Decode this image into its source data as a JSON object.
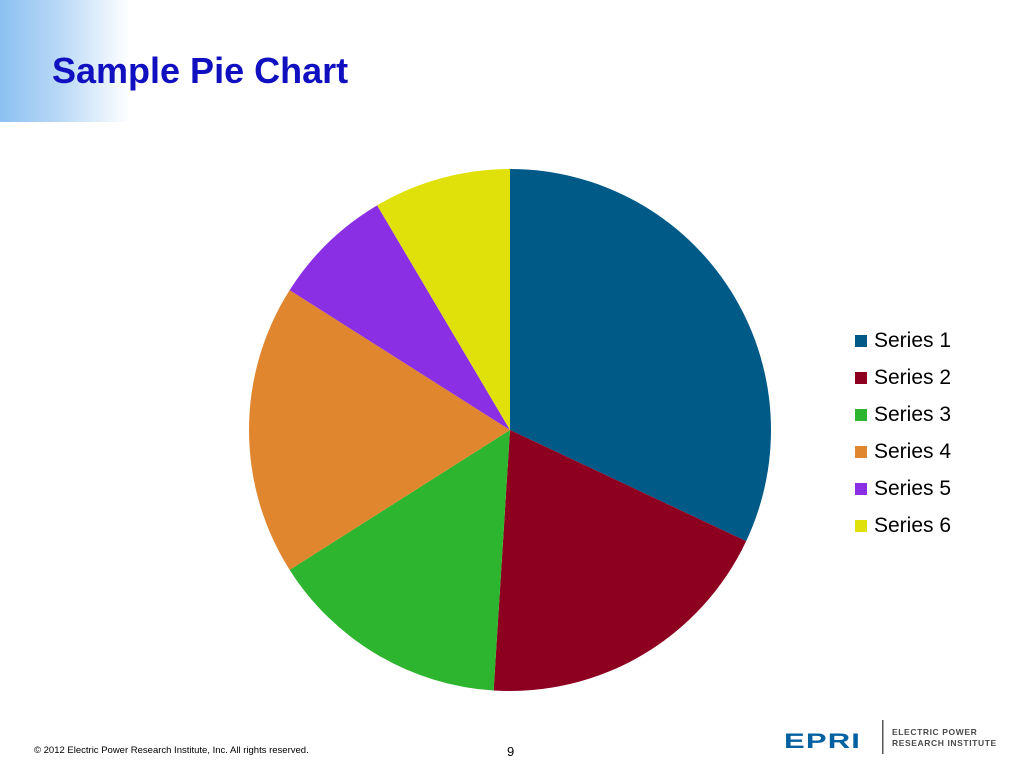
{
  "slide": {
    "title": "Sample Pie Chart",
    "page_number": "9",
    "copyright": "© 2012 Electric Power Research Institute, Inc. All rights reserved."
  },
  "logo": {
    "wordmark": "EPRI",
    "line1": "ELECTRIC POWER",
    "line2": "RESEARCH INSTITUTE",
    "color": "#0060a0"
  },
  "chart_data": {
    "type": "pie",
    "title": "",
    "legend_position": "right",
    "start": "top, clockwise",
    "categories": [
      "Series 1",
      "Series 2",
      "Series 3",
      "Series 4",
      "Series 5",
      "Series 6"
    ],
    "values": [
      32,
      19,
      15,
      18,
      7.5,
      8.5
    ],
    "colors": [
      "#005a87",
      "#8d001f",
      "#2db52f",
      "#e0862f",
      "#8a2fe3",
      "#e0e00a"
    ]
  }
}
